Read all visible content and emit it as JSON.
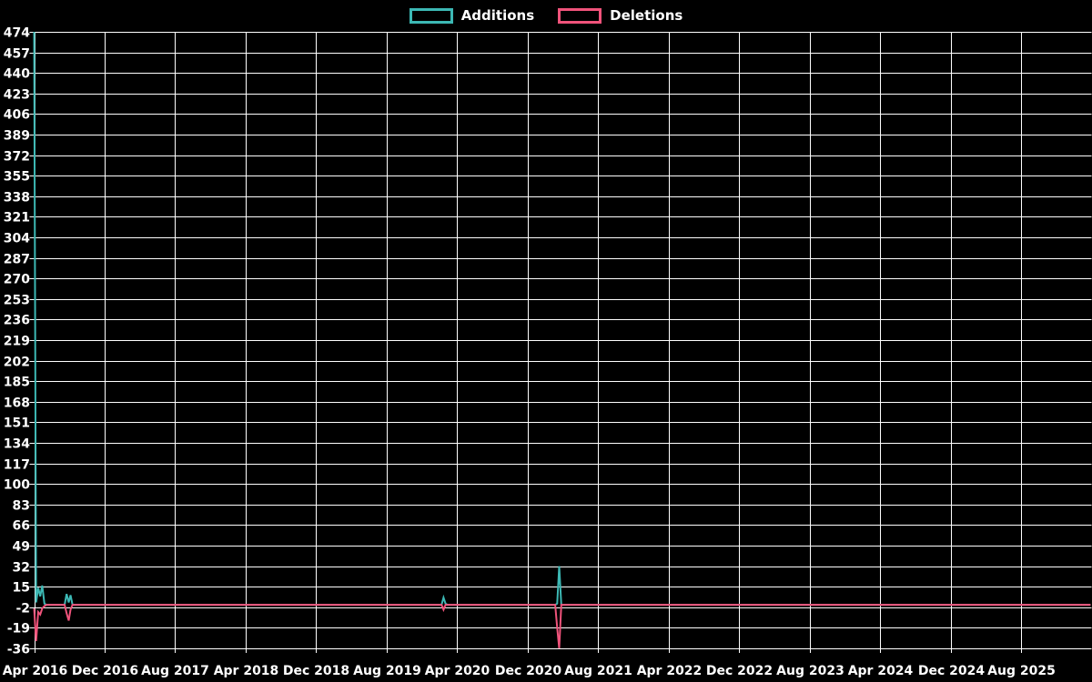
{
  "chart_data": {
    "type": "line",
    "title": "",
    "background_color": "#000000",
    "grid": true,
    "grid_color": "#ffffff",
    "text_color": "#ffffff",
    "legend_position": "top-center",
    "ylim": [
      -36,
      474
    ],
    "y_ticks": [
      474,
      457,
      440,
      423,
      406,
      389,
      372,
      355,
      338,
      321,
      304,
      287,
      270,
      253,
      236,
      219,
      202,
      185,
      168,
      151,
      134,
      117,
      100,
      83,
      66,
      49,
      32,
      15,
      -2,
      -19,
      -36
    ],
    "x_tick_labels": [
      "Apr 2016",
      "Dec 2016",
      "Aug 2017",
      "Apr 2018",
      "Dec 2018",
      "Aug 2019",
      "Apr 2020",
      "Dec 2020",
      "Aug 2021",
      "Apr 2022",
      "Dec 2022",
      "Aug 2023",
      "Apr 2024",
      "Dec 2024",
      "Aug 2025"
    ],
    "x_tick_interval_months": 8,
    "xlim_dates": [
      "2016-04-01",
      "2026-04-01"
    ],
    "series": [
      {
        "name": "Additions",
        "color": "#3cb8b4",
        "points": [
          [
            "2016-04-01",
            474
          ],
          [
            "2016-04-08",
            2
          ],
          [
            "2016-04-15",
            14
          ],
          [
            "2016-04-22",
            7
          ],
          [
            "2016-04-29",
            16
          ],
          [
            "2016-05-06",
            1
          ],
          [
            "2016-05-13",
            0
          ],
          [
            "2016-07-15",
            0
          ],
          [
            "2016-07-22",
            9
          ],
          [
            "2016-07-29",
            2
          ],
          [
            "2016-08-05",
            8
          ],
          [
            "2016-08-12",
            0
          ],
          [
            "2020-02-08",
            0
          ],
          [
            "2020-02-15",
            6
          ],
          [
            "2020-02-22",
            1
          ],
          [
            "2020-02-29",
            0
          ],
          [
            "2021-03-05",
            0
          ],
          [
            "2021-03-12",
            1
          ],
          [
            "2021-03-19",
            32
          ],
          [
            "2021-03-26",
            0
          ],
          [
            "2026-03-28",
            0
          ]
        ]
      },
      {
        "name": "Deletions",
        "color": "#f0537b",
        "points": [
          [
            "2016-04-01",
            -3
          ],
          [
            "2016-04-08",
            -30
          ],
          [
            "2016-04-15",
            -6
          ],
          [
            "2016-04-22",
            -8
          ],
          [
            "2016-04-29",
            -3
          ],
          [
            "2016-05-06",
            -1
          ],
          [
            "2016-05-13",
            0
          ],
          [
            "2016-07-15",
            0
          ],
          [
            "2016-07-22",
            -7
          ],
          [
            "2016-07-29",
            -13
          ],
          [
            "2016-08-05",
            -4
          ],
          [
            "2016-08-12",
            0
          ],
          [
            "2020-02-08",
            0
          ],
          [
            "2020-02-15",
            -4
          ],
          [
            "2020-02-22",
            0
          ],
          [
            "2021-03-05",
            0
          ],
          [
            "2021-03-12",
            -19
          ],
          [
            "2021-03-19",
            -36
          ],
          [
            "2021-03-26",
            0
          ],
          [
            "2026-03-28",
            0
          ]
        ]
      }
    ]
  }
}
